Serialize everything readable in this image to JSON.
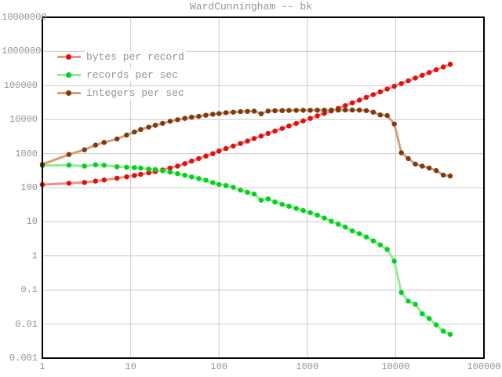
{
  "title": "WardCunningham -- bk",
  "colors": {
    "background": "#ffffff",
    "frame": "#000000",
    "grid": "#cccccc",
    "text": "#949494"
  },
  "legend": {
    "items": [
      {
        "label": "bytes per record",
        "dot_color": "#e01010",
        "line_color": "#f29186"
      },
      {
        "label": "records per sec",
        "dot_color": "#00d21e",
        "line_color": "#95ec92"
      },
      {
        "label": "integers per sec",
        "dot_color": "#7d3a11",
        "line_color": "#d2a077"
      }
    ]
  },
  "chart_data": {
    "type": "line",
    "title": "WardCunningham -- bk",
    "x_scale": "log",
    "y_scale": "log",
    "xlim": [
      1,
      100000
    ],
    "ylim": [
      0.001,
      10000000
    ],
    "grid": true,
    "legend_position": "top-left",
    "x_ticks": [
      "1",
      "10",
      "100",
      "1000",
      "10000",
      "100000"
    ],
    "y_ticks": [
      "10000000",
      "1000000",
      "100000",
      "10000",
      "1000",
      "100",
      "10",
      "1",
      "0.1",
      "0.01",
      "0.001"
    ],
    "x": [
      1,
      2,
      3,
      4,
      5,
      7,
      9,
      11,
      13,
      16,
      19,
      23,
      28,
      34,
      41,
      49,
      59,
      71,
      85,
      100,
      120,
      145,
      175,
      210,
      250,
      300,
      360,
      430,
      520,
      620,
      750,
      900,
      1080,
      1300,
      1560,
      1870,
      2240,
      2690,
      3230,
      3880,
      4650,
      5580,
      6700,
      8040,
      9650,
      11600,
      13900,
      16700,
      20000,
      24000,
      28800,
      34600,
      41500
    ],
    "series": [
      {
        "name": "bytes per record",
        "dot_color": "#e01010",
        "line_color": "#f29186",
        "values": [
          123,
          135,
          143,
          156,
          168,
          190,
          208,
          228,
          246,
          272,
          298,
          333,
          378,
          430,
          510,
          604,
          715,
          848,
          1000,
          1190,
          1410,
          1670,
          1980,
          2340,
          2780,
          3290,
          3900,
          4620,
          5470,
          6480,
          7680,
          9100,
          10800,
          12800,
          15100,
          17900,
          21200,
          25600,
          30800,
          37100,
          44800,
          53900,
          65000,
          78300,
          94400,
          114000,
          137000,
          165000,
          199000,
          240000,
          289000,
          348000,
          420000
        ]
      },
      {
        "name": "records per sec",
        "dot_color": "#00d21e",
        "line_color": "#95ec92",
        "values": [
          450,
          460,
          430,
          468,
          455,
          413,
          400,
          390,
          377,
          352,
          340,
          315,
          287,
          258,
          232,
          207,
          186,
          166,
          141,
          124,
          116,
          103,
          85,
          73,
          65,
          43,
          47,
          38,
          32.5,
          28.5,
          24.8,
          21.5,
          18.5,
          15.8,
          12.9,
          10.4,
          8.5,
          7.0,
          5.4,
          4.5,
          3.6,
          2.75,
          2.1,
          1.55,
          0.7,
          0.085,
          0.047,
          0.038,
          0.02,
          0.0145,
          0.0095,
          0.0062,
          0.005
        ]
      },
      {
        "name": "integers per sec",
        "dot_color": "#7d3a11",
        "line_color": "#d2a077",
        "values": [
          483,
          944,
          1300,
          1780,
          2140,
          2700,
          3500,
          4300,
          5100,
          6000,
          6800,
          7750,
          8900,
          9900,
          10800,
          11700,
          12400,
          13400,
          14300,
          15000,
          15900,
          16500,
          17100,
          17400,
          17600,
          14800,
          17700,
          18100,
          18300,
          18500,
          18600,
          18700,
          18700,
          18800,
          18800,
          18900,
          18900,
          19000,
          19000,
          18900,
          18300,
          16500,
          13700,
          13100,
          7400,
          1060,
          720,
          495,
          430,
          378,
          318,
          235,
          220
        ]
      }
    ]
  }
}
